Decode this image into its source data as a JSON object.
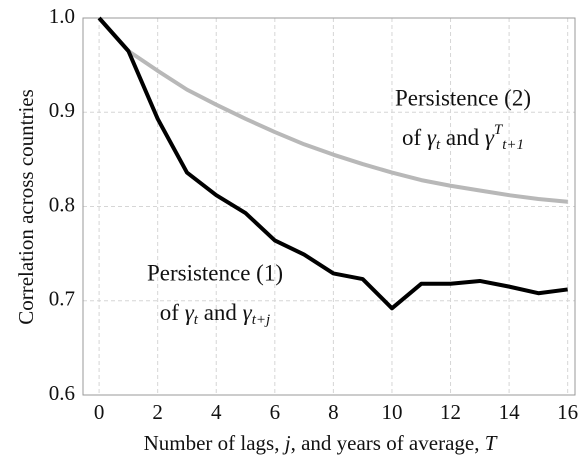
{
  "chart_data": {
    "type": "line",
    "y_label": "Correlation across countries",
    "x_label": [
      "Number of lags, ",
      "j",
      ", and years of average, ",
      "T"
    ],
    "annotations": [
      {
        "line1": "Persistence (2)",
        "line2": [
          "of ",
          "γ",
          "t",
          " and ",
          "γ",
          "T",
          "t+1"
        ]
      },
      {
        "line1": "Persistence (1)",
        "line2": [
          "of ",
          "γ",
          "t",
          " and ",
          "γ",
          "t+j"
        ]
      }
    ],
    "x": [
      0,
      1,
      2,
      3,
      4,
      5,
      6,
      7,
      8,
      9,
      10,
      11,
      12,
      13,
      14,
      15,
      16
    ],
    "series": [
      {
        "color": "#b8b8b8",
        "values": [
          1.0,
          0.965,
          0.944,
          0.924,
          0.908,
          0.893,
          0.879,
          0.866,
          0.855,
          0.845,
          0.836,
          0.828,
          0.822,
          0.817,
          0.812,
          0.808,
          0.805
        ]
      },
      {
        "color": "#000000",
        "values": [
          1.0,
          0.965,
          0.893,
          0.836,
          0.812,
          0.793,
          0.764,
          0.749,
          0.729,
          0.723,
          0.692,
          0.718,
          0.718,
          0.721,
          0.715,
          0.708,
          0.712
        ]
      }
    ],
    "xlim": [
      -0.55,
      16.25
    ],
    "ylim": [
      0.6,
      1.0
    ],
    "xticks": [
      0,
      2,
      4,
      6,
      8,
      10,
      12,
      14,
      16
    ],
    "yticks": [
      0.6,
      0.7,
      0.8,
      0.9,
      {
        "value": 1,
        "label": "1.0"
      }
    ],
    "grid": true
  }
}
